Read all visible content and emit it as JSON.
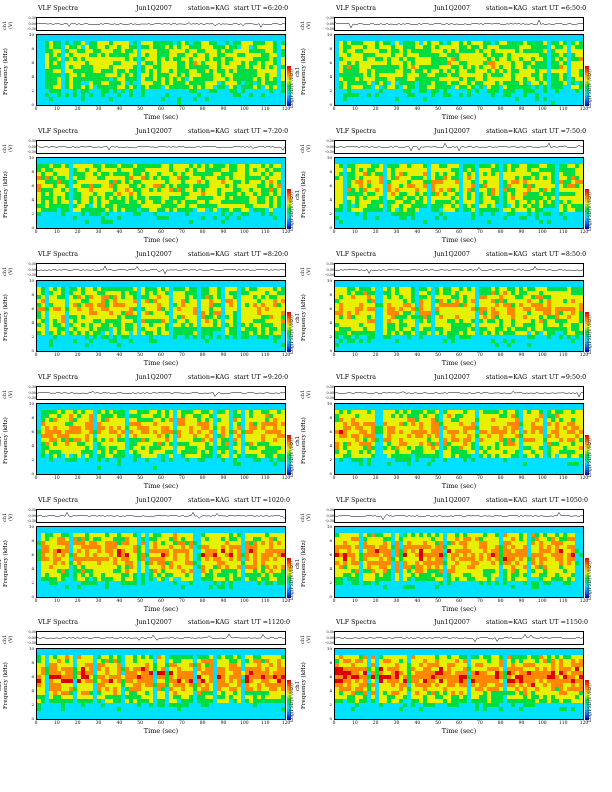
{
  "title": "VLF Spectra",
  "ts_ylabel": "ch1 (V)",
  "ts_ticks": [
    "0.30",
    "0.00",
    "-0.30"
  ],
  "spec_ylabel_ch": "ch1",
  "spec_ylabel": "Frequency (kHz)",
  "spec_yticks": [
    "10",
    "8",
    "6",
    "4",
    "2",
    "0"
  ],
  "xlabel": "Time (sec)",
  "xticks": [
    "0",
    "10",
    "20",
    "30",
    "40",
    "50",
    "60",
    "70",
    "80",
    "90",
    "100",
    "110",
    "120"
  ],
  "colorbar_label": "Log(PSD(V²/Hz))",
  "colors": {
    "background_band": "#00d8ff",
    "scale": [
      "#0000aa",
      "#0077ff",
      "#00e0ff",
      "#00dd44",
      "#e6f000",
      "#ff8800",
      "#dd0000"
    ]
  },
  "chart_data": [
    {
      "type": "heatmap",
      "date": "Jun1Q2007",
      "station": "station=KAG",
      "start": "start UT =6:20:0",
      "x_range": [
        0,
        120
      ],
      "y_range_khz": [
        0,
        10
      ],
      "ts_ylim": [
        -0.3,
        0.3
      ]
    },
    {
      "type": "heatmap",
      "date": "Jun1Q2007",
      "station": "station=KAG",
      "start": "start UT =6:50:0",
      "x_range": [
        0,
        120
      ],
      "y_range_khz": [
        0,
        10
      ],
      "ts_ylim": [
        -0.3,
        0.3
      ]
    },
    {
      "type": "heatmap",
      "date": "Jun1Q2007",
      "station": "station=KAG",
      "start": "start UT =7:20:0",
      "x_range": [
        0,
        120
      ],
      "y_range_khz": [
        0,
        10
      ],
      "ts_ylim": [
        -0.3,
        0.3
      ]
    },
    {
      "type": "heatmap",
      "date": "Jun1Q2007",
      "station": "station=KAG",
      "start": "start UT =7:50:0",
      "x_range": [
        0,
        120
      ],
      "y_range_khz": [
        0,
        10
      ],
      "ts_ylim": [
        -0.3,
        0.3
      ]
    },
    {
      "type": "heatmap",
      "date": "Jun1Q2007",
      "station": "station=KAG",
      "start": "start UT =8:20:0",
      "x_range": [
        0,
        120
      ],
      "y_range_khz": [
        0,
        10
      ],
      "ts_ylim": [
        -0.3,
        0.3
      ]
    },
    {
      "type": "heatmap",
      "date": "Jun1Q2007",
      "station": "station=KAG",
      "start": "start UT =8:50:0",
      "x_range": [
        0,
        120
      ],
      "y_range_khz": [
        0,
        10
      ],
      "ts_ylim": [
        -0.3,
        0.3
      ]
    },
    {
      "type": "heatmap",
      "date": "Jun1Q2007",
      "station": "station=KAG",
      "start": "start UT =9:20:0",
      "x_range": [
        0,
        120
      ],
      "y_range_khz": [
        0,
        10
      ],
      "ts_ylim": [
        -0.3,
        0.3
      ]
    },
    {
      "type": "heatmap",
      "date": "Jun1Q2007",
      "station": "station=KAG",
      "start": "start UT =9:50:0",
      "x_range": [
        0,
        120
      ],
      "y_range_khz": [
        0,
        10
      ],
      "ts_ylim": [
        -0.3,
        0.3
      ]
    },
    {
      "type": "heatmap",
      "date": "Jun1Q2007",
      "station": "station=KAG",
      "start": "start UT =1020:0",
      "x_range": [
        0,
        120
      ],
      "y_range_khz": [
        0,
        10
      ],
      "ts_ylim": [
        -0.3,
        0.3
      ]
    },
    {
      "type": "heatmap",
      "date": "Jun1Q2007",
      "station": "station=KAG",
      "start": "start UT =1050:0",
      "x_range": [
        0,
        120
      ],
      "y_range_khz": [
        0,
        10
      ],
      "ts_ylim": [
        -0.3,
        0.3
      ]
    },
    {
      "type": "heatmap",
      "date": "Jun1Q2007",
      "station": "station=KAG",
      "start": "start UT =1120:0",
      "x_range": [
        0,
        120
      ],
      "y_range_khz": [
        0,
        10
      ],
      "ts_ylim": [
        -0.3,
        0.3
      ]
    },
    {
      "type": "heatmap",
      "date": "Jun1Q2007",
      "station": "station=KAG",
      "start": "start UT =1150:0",
      "x_range": [
        0,
        120
      ],
      "y_range_khz": [
        0,
        10
      ],
      "ts_ylim": [
        -0.3,
        0.3
      ]
    }
  ]
}
